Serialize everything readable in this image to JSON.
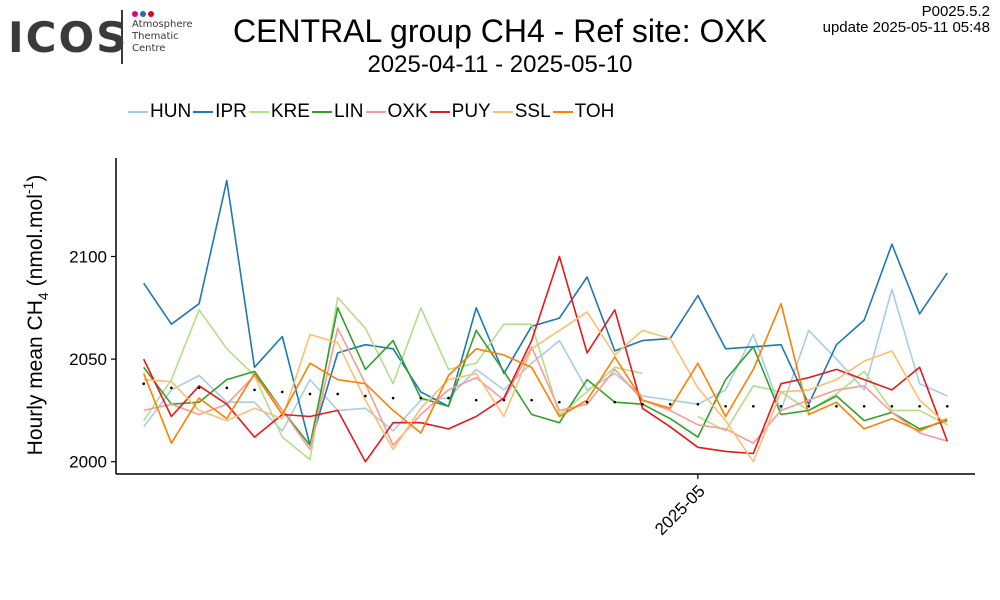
{
  "logo": {
    "wordmark": "ICOS",
    "subtitle_lines": [
      "Atmosphere",
      "Thematic",
      "Centre"
    ],
    "dot_colors": [
      "#e6007e",
      "#1d71b8",
      "#e30613"
    ]
  },
  "header": {
    "title": "CENTRAL group CH4 - Ref site: OXK",
    "subtitle": "2025-04-11 - 2025-05-10",
    "version": "P0025.5.2",
    "update": "update  2025-05-11 05:48"
  },
  "chart_data": {
    "type": "line",
    "title": "CENTRAL group CH4 - Ref site: OXK",
    "subtitle": "2025-04-11 - 2025-05-10",
    "ylabel_main": "Hourly mean  CH",
    "ylabel_sub": "4",
    "ylabel_units": "(nmol.mol",
    "ylabel_sup": "-1",
    "ylabel_close": ")",
    "xlabel": "",
    "x": [
      "2025-04-11",
      "2025-04-12",
      "2025-04-13",
      "2025-04-14",
      "2025-04-15",
      "2025-04-16",
      "2025-04-17",
      "2025-04-18",
      "2025-04-19",
      "2025-04-20",
      "2025-04-21",
      "2025-04-22",
      "2025-04-23",
      "2025-04-24",
      "2025-04-25",
      "2025-04-26",
      "2025-04-27",
      "2025-04-28",
      "2025-04-29",
      "2025-04-30",
      "2025-05-01",
      "2025-05-02",
      "2025-05-03",
      "2025-05-04",
      "2025-05-05",
      "2025-05-06",
      "2025-05-07",
      "2025-05-08",
      "2025-05-09",
      "2025-05-10"
    ],
    "xlim": [
      "2025-04-10",
      "2025-05-11"
    ],
    "x_ticks": [
      {
        "date": "2025-05-01",
        "label": "2025-05"
      }
    ],
    "ylim": [
      1994,
      2148
    ],
    "y_ticks": [
      2000,
      2050,
      2100
    ],
    "grid": false,
    "legend_position": "top-left",
    "series": [
      {
        "name": "HUN",
        "color": "#a6cee3",
        "values": [
          2017,
          2035,
          2042,
          2029,
          2029,
          2015,
          2040,
          2025,
          2026,
          2015,
          2030,
          2031,
          2045,
          2035,
          2048,
          2059,
          2035,
          2043,
          2032,
          2030,
          2028,
          2035,
          2062,
          2025,
          2064,
          2050,
          2035,
          2084,
          2038,
          2032
        ]
      },
      {
        "name": "IPR",
        "color": "#1f78b4",
        "values": [
          2087,
          2067,
          2077,
          2137,
          2046,
          2061,
          2008,
          2053,
          2057,
          2055,
          2034,
          2027,
          2075,
          2043,
          2066,
          2070,
          2090,
          2054,
          2059,
          2060,
          2081,
          2055,
          2056,
          2057,
          2028,
          2057,
          2069,
          2106,
          2072,
          2092
        ]
      },
      {
        "name": "KRE",
        "color": "#b2df8a",
        "values": [
          2020,
          2040,
          2074,
          2055,
          2042,
          2012,
          2001,
          2080,
          2065,
          2038,
          2075,
          2045,
          2048,
          2067,
          2067,
          2023,
          2034,
          2046,
          2043,
          null,
          2022,
          2015,
          2037,
          2034,
          2025,
          2033,
          2044,
          2025,
          2025,
          2018
        ]
      },
      {
        "name": "LIN",
        "color": "#33a02c",
        "values": [
          2046,
          2028,
          2029,
          2040,
          2044,
          2025,
          2008,
          2075,
          2045,
          2059,
          2031,
          2027,
          2064,
          2044,
          2023,
          2019,
          2040,
          2029,
          2028,
          2021,
          2012,
          2040,
          2056,
          2023,
          2025,
          2032,
          2020,
          2024,
          2016,
          2020
        ]
      },
      {
        "name": "OXK",
        "color": "#fb9a99",
        "values": [
          2025,
          2028,
          2023,
          2028,
          2042,
          2025,
          2006,
          2065,
          2038,
          2008,
          2023,
          2035,
          2041,
          2030,
          2056,
          2025,
          2028,
          2045,
          2030,
          2025,
          2018,
          2016,
          2009,
          2025,
          2030,
          2035,
          2037,
          2024,
          2014,
          2010
        ]
      },
      {
        "name": "PUY",
        "color": "#e31a1c",
        "values": [
          2050,
          2022,
          2037,
          2028,
          2012,
          2023,
          2022,
          2025,
          2000,
          2019,
          2019,
          2016,
          2022,
          2031,
          2059,
          2100,
          2053,
          2074,
          2026,
          2017,
          2007,
          2005,
          2004,
          2038,
          2041,
          2045,
          2040,
          2035,
          2046,
          2010
        ]
      },
      {
        "name": "SSL",
        "color": "#fdbf6f",
        "values": [
          2040,
          2039,
          2025,
          2020,
          2026,
          2021,
          2062,
          2058,
          2030,
          2006,
          2026,
          2040,
          2043,
          2022,
          2055,
          2064,
          2073,
          2052,
          2064,
          2060,
          2036,
          2020,
          2000,
          2034,
          2035,
          2040,
          2049,
          2054,
          2030,
          2018
        ]
      },
      {
        "name": "TOH",
        "color": "#ff7f00",
        "values": [
          2043,
          2009,
          2031,
          2021,
          2043,
          2023,
          2048,
          2040,
          2038,
          2025,
          2014,
          2042,
          2055,
          2052,
          2046,
          2022,
          2030,
          2051,
          2030,
          2026,
          2048,
          2022,
          2045,
          2077,
          2023,
          2029,
          2016,
          2021,
          2015,
          2021
        ]
      }
    ],
    "reference_points": {
      "values": [
        2038,
        2036,
        2036,
        2036,
        2035,
        2034,
        2033,
        2033,
        2032,
        2031,
        2031,
        2031,
        2030,
        2030,
        2030,
        2029,
        2029,
        2029,
        2028,
        2028,
        2028,
        2027,
        2027,
        2027,
        2027,
        2027,
        2027,
        2027,
        2027,
        2027
      ]
    }
  }
}
